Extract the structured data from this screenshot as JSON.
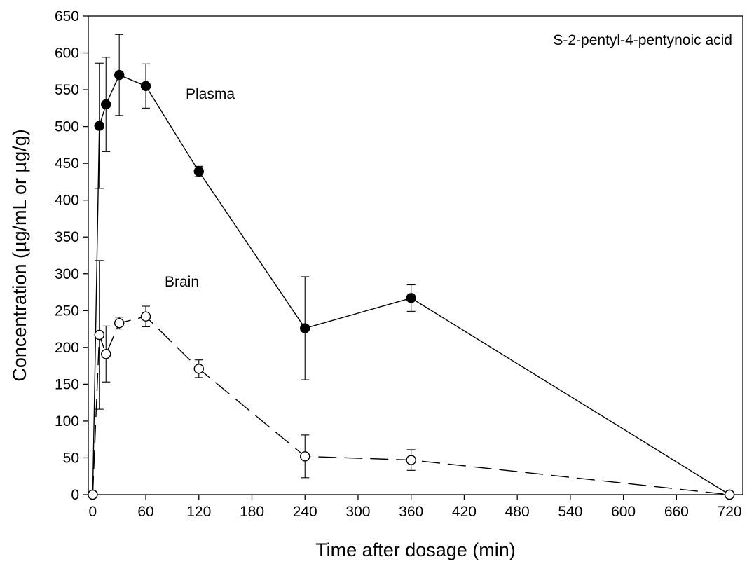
{
  "chart_data": {
    "type": "scatter",
    "title": "",
    "xlabel": "Time after dosage (min)",
    "ylabel": "Concentration (µg/mL or µg/g)",
    "xlim": [
      -5,
      735
    ],
    "ylim": [
      0,
      650
    ],
    "xticks": [
      0,
      60,
      120,
      180,
      240,
      300,
      360,
      420,
      480,
      540,
      600,
      660,
      720
    ],
    "yticks": [
      0,
      50,
      100,
      150,
      200,
      250,
      300,
      350,
      400,
      450,
      500,
      550,
      600,
      650
    ],
    "grid": false,
    "annotations": [
      {
        "text": "S-2-pentyl-4-pentynoic acid",
        "position": "top-right"
      },
      {
        "text": "Plasma",
        "label_for": "Plasma"
      },
      {
        "text": "Brain",
        "label_for": "Brain"
      }
    ],
    "series": [
      {
        "name": "Plasma",
        "marker": "filled-circle",
        "line": "solid",
        "color": "#000000",
        "x": [
          0,
          7.5,
          15,
          30,
          60,
          120,
          240,
          360,
          720
        ],
        "y": [
          0,
          501,
          530,
          570,
          555,
          439,
          226,
          267,
          0
        ],
        "err": [
          0,
          85,
          64,
          55,
          30,
          7,
          70,
          18,
          0
        ]
      },
      {
        "name": "Brain",
        "marker": "open-circle",
        "line": "dashed",
        "color": "#000000",
        "x": [
          0,
          7.5,
          15,
          30,
          60,
          120,
          240,
          360,
          720
        ],
        "y": [
          0,
          217,
          191,
          233,
          242,
          171,
          52,
          47,
          0
        ],
        "err": [
          0,
          101,
          38,
          8,
          14,
          12,
          29,
          14,
          0
        ]
      }
    ]
  }
}
